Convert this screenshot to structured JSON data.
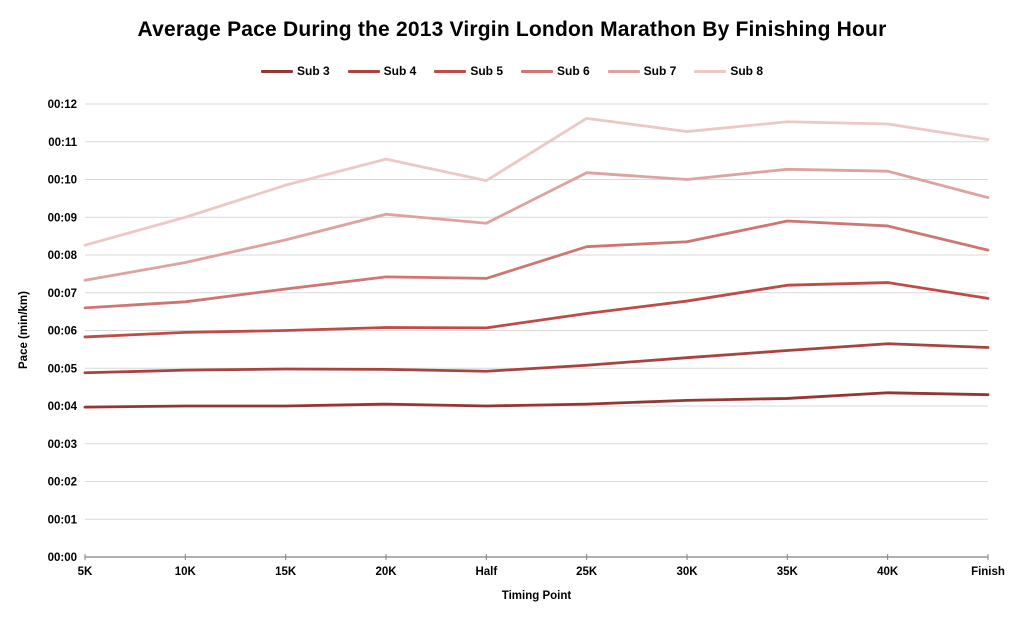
{
  "title": "Average Pace During the 2013 Virgin London Marathon By Finishing Hour",
  "chart_data": {
    "type": "line",
    "title": "Average Pace During the 2013 Virgin London Marathon By Finishing Hour",
    "xlabel": "Timing Point",
    "ylabel": "Pace (min/km)",
    "categories": [
      "5K",
      "10K",
      "15K",
      "20K",
      "Half",
      "25K",
      "30K",
      "35K",
      "40K",
      "Finish"
    ],
    "y_tick_labels": [
      "00:00",
      "00:01",
      "00:02",
      "00:03",
      "00:04",
      "00:05",
      "00:06",
      "00:07",
      "00:08",
      "00:09",
      "00:10",
      "00:11",
      "00:12"
    ],
    "ylim": [
      0,
      12
    ],
    "y_unit": "minutes per km",
    "grid": true,
    "legend_position": "top",
    "series": [
      {
        "name": "Sub 3",
        "color": "#943634",
        "values": [
          3.97,
          4.0,
          4.0,
          4.05,
          4.0,
          4.05,
          4.15,
          4.2,
          4.35,
          4.3
        ]
      },
      {
        "name": "Sub 4",
        "color": "#A84340",
        "values": [
          4.88,
          4.95,
          4.98,
          4.97,
          4.92,
          5.08,
          5.28,
          5.47,
          5.65,
          5.55
        ]
      },
      {
        "name": "Sub 5",
        "color": "#BF4B48",
        "values": [
          5.83,
          5.95,
          6.0,
          6.08,
          6.07,
          6.45,
          6.78,
          7.2,
          7.27,
          6.85
        ]
      },
      {
        "name": "Sub 6",
        "color": "#CE7673",
        "values": [
          6.6,
          6.76,
          7.1,
          7.42,
          7.38,
          8.22,
          8.35,
          8.9,
          8.77,
          8.13
        ]
      },
      {
        "name": "Sub 7",
        "color": "#DDA3A0",
        "values": [
          7.33,
          7.8,
          8.4,
          9.08,
          8.84,
          10.18,
          10.0,
          10.27,
          10.22,
          9.52
        ]
      },
      {
        "name": "Sub 8",
        "color": "#ECC8C6",
        "values": [
          8.26,
          9.0,
          9.85,
          10.54,
          9.97,
          11.62,
          11.27,
          11.53,
          11.47,
          11.06
        ]
      }
    ]
  },
  "colors": {
    "background": "#FFFFFF",
    "gridline": "#D9D9D9",
    "axis": "#808080",
    "text": "#000000"
  }
}
